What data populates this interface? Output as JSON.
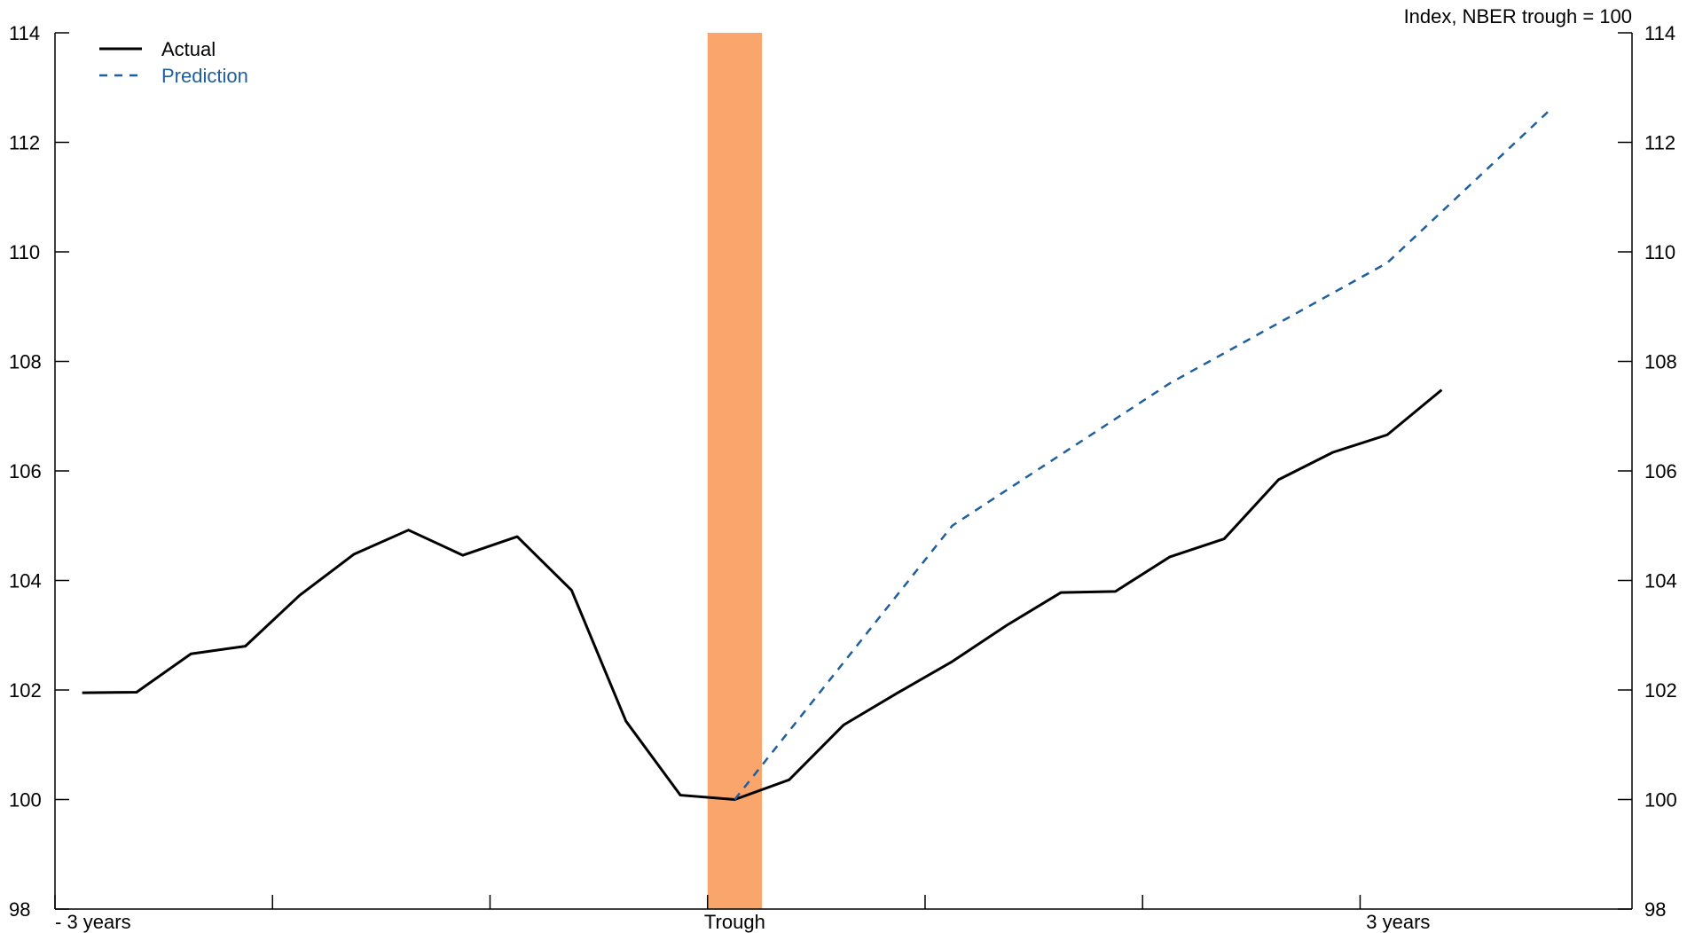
{
  "chart_data": {
    "type": "line",
    "note": "Index, NBER trough = 100",
    "y_ticks": [
      98,
      100,
      102,
      104,
      106,
      108,
      110,
      112,
      114
    ],
    "ylim": [
      98,
      114
    ],
    "x_tick_labels": [
      "- 3 years",
      "Trough",
      "3 years"
    ],
    "trough_band_color": "#f9a56b",
    "series": [
      {
        "name": "Actual",
        "color": "#000000",
        "style": "solid",
        "x": [
          -12,
          -11,
          -10,
          -9,
          -8,
          -7,
          -6,
          -5,
          -4,
          -3,
          -2,
          -1,
          0,
          1,
          2,
          3,
          4,
          5,
          6,
          7,
          8,
          9,
          10,
          11,
          12,
          13
        ],
        "values": [
          101.95,
          101.96,
          102.66,
          102.8,
          103.73,
          104.48,
          104.92,
          104.46,
          104.8,
          103.82,
          101.43,
          100.08,
          100.0,
          100.36,
          101.36,
          101.95,
          102.52,
          103.18,
          103.78,
          103.8,
          104.43,
          104.76,
          105.84,
          106.34,
          106.66,
          107.48
        ]
      },
      {
        "name": "Prediction",
        "color": "#1f5f9e",
        "style": "dashed",
        "x": [
          0,
          4,
          8,
          12,
          15
        ],
        "values": [
          100.0,
          105.0,
          107.6,
          109.8,
          112.6
        ]
      }
    ],
    "legend_position": "top-left"
  }
}
